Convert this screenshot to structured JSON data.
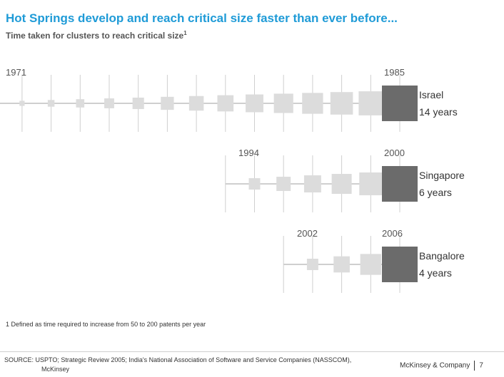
{
  "header": {
    "title": "Hot Springs develop and reach critical size faster than ever before...",
    "subtitle": "Time taken for clusters to reach critical size",
    "subtitle_sup": "1"
  },
  "chart_data": {
    "type": "timeline",
    "title": "Time taken for clusters to reach critical size",
    "series": [
      {
        "name": "Israel",
        "start_year": "1971",
        "end_year": "1985",
        "duration": "14 years",
        "label_line1": "Israel",
        "label_line2": "14 years",
        "steps": 14
      },
      {
        "name": "Singapore",
        "start_year": "1994",
        "end_year": "2000",
        "duration": "6 years",
        "label_line1": "Singapore",
        "label_line2": "6 years",
        "steps": 6
      },
      {
        "name": "Bangalore",
        "start_year": "2002",
        "end_year": "2006",
        "duration": "4 years",
        "label_line1": "Bangalore",
        "label_line2": "4 years",
        "steps": 4
      }
    ],
    "colors": {
      "growth": "#dcdcdc",
      "critical": "#6b6b6b",
      "axis": "#cfcfcf"
    }
  },
  "footer": {
    "footnote": "1 Defined as time required to increase from 50 to 200 patents per year",
    "source_line1": "SOURCE: USPTO; Strategic Review 2005; India's National Association of Software and Service Companies (NASSCOM),",
    "source_line2": "McKinsey",
    "brand": "McKinsey & Company",
    "page_number": "7"
  }
}
